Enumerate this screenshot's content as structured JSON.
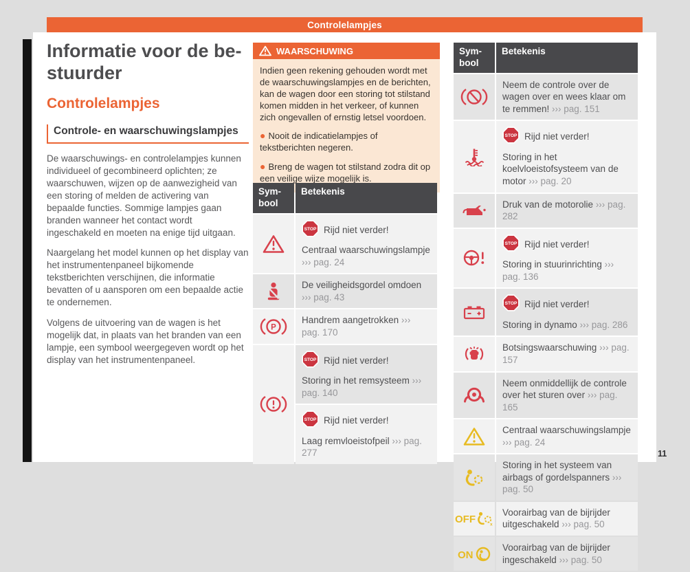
{
  "colors": {
    "accent": "#eb6434",
    "canvas_bg": "#dedede",
    "page_bg": "#ffffff",
    "table_header_bg": "#48484b",
    "row_light": "#f2f2f2",
    "row_dark": "#e4e4e4",
    "warning_body_bg": "#fbe7d4",
    "icon_red": "#d8414c",
    "icon_yellow": "#e7bb22",
    "stop_red": "#cb3540",
    "ref_gray": "#97979a"
  },
  "banner": {
    "text": "Controlelampjes"
  },
  "page_number": "11",
  "left_column": {
    "title_lines": [
      "Informatie voor de be-",
      "stuurder"
    ],
    "section_heading": "Controlelampjes",
    "subsection_heading": "Controle- en waarschuwingslampjes",
    "paragraphs": [
      "De waarschuwings- en controlelampjes kunnen individueel of gecombineerd oplichten; ze waarschuwen, wijzen op de aanwezigheid van een storing of melden de activering van bepaalde functies. Sommige lampjes gaan branden wanneer het contact wordt ingeschakeld en moeten na enige tijd uitgaan.",
      "Naargelang het model kunnen op het display van het instrumentenpaneel bijkomende tekstberichten verschijnen, die informatie bevatten of u aansporen om een bepaalde actie te ondernemen.",
      "Volgens de uitvoering van de wagen is het mogelijk dat, in plaats van het branden van een lampje, een symbool weergegeven wordt op het display van het instrumentenpaneel."
    ]
  },
  "warning_box": {
    "title": "WAARSCHUWING",
    "body": "Indien geen rekening gehouden wordt met de waarschuwingslampjes en de berichten, kan de wagen door een storing tot stilstand komen midden in het verkeer, of kunnen zich ongevallen of ernstig letsel voordoen.",
    "bullets": [
      "Nooit de indicatielampjes of tekstberichten negeren.",
      "Breng de wagen tot stilstand zodra dit op een veilige wijze mogelijk is."
    ]
  },
  "tables": [
    {
      "id": "mid-table",
      "headers": [
        "Sym-bool",
        "Betekenis"
      ],
      "rows": [
        {
          "icon": "central-warning-red",
          "shade": "light",
          "entries": [
            {
              "shade": "light",
              "stop": true,
              "stop_label": "Rijd niet verder!",
              "text": "Centraal waarschuwingslampje",
              "ref": "››› pag. 24"
            }
          ]
        },
        {
          "icon": "seatbelt",
          "shade": "dark",
          "entries": [
            {
              "shade": "dark",
              "stop": false,
              "text": "De veiligheidsgordel omdoen",
              "ref": "››› pag. 43"
            }
          ]
        },
        {
          "icon": "handbrake",
          "shade": "light",
          "entries": [
            {
              "shade": "light",
              "stop": false,
              "text": "Handrem aangetrokken",
              "ref": "››› pag. 170"
            }
          ]
        },
        {
          "icon": "brake-warning",
          "shade": "light",
          "entries": [
            {
              "shade": "dark",
              "stop": true,
              "stop_label": "Rijd niet verder!",
              "text": "Storing in het remsysteem",
              "ref": "››› pag. 140"
            },
            {
              "shade": "light",
              "stop": true,
              "stop_label": "Rijd niet verder!",
              "text": "Laag remvloeistofpeil",
              "ref": "››› pag. 277"
            }
          ]
        }
      ]
    },
    {
      "id": "right-table",
      "headers": [
        "Sym-bool",
        "Betekenis"
      ],
      "rows": [
        {
          "icon": "brake-assist",
          "shade": "dark",
          "entries": [
            {
              "shade": "dark",
              "stop": false,
              "text": "Neem de controle over de wagen over en wees klaar om te remmen!",
              "ref": "››› pag. 151"
            }
          ]
        },
        {
          "icon": "coolant",
          "shade": "light",
          "entries": [
            {
              "shade": "light",
              "stop": true,
              "stop_label": "Rijd niet verder!",
              "text": "Storing in het koelvloeistofsysteem van de motor",
              "ref": "››› pag. 20"
            }
          ]
        },
        {
          "icon": "oil-pressure",
          "shade": "dark",
          "entries": [
            {
              "shade": "dark",
              "stop": false,
              "text": "Druk van de motorolie",
              "ref": "››› pag. 282"
            }
          ]
        },
        {
          "icon": "steering-warning",
          "shade": "light",
          "entries": [
            {
              "shade": "light",
              "stop": true,
              "stop_label": "Rijd niet verder!",
              "text": "Storing in stuurinrichting",
              "ref": "››› pag. 136"
            }
          ]
        },
        {
          "icon": "battery",
          "shade": "dark",
          "entries": [
            {
              "shade": "dark",
              "stop": true,
              "stop_label": "Rijd niet verder!",
              "text": "Storing in dynamo",
              "ref": "››› pag. 286"
            }
          ]
        },
        {
          "icon": "collision-warning",
          "shade": "light",
          "entries": [
            {
              "shade": "light",
              "stop": false,
              "text": "Botsingswaarschuwing",
              "ref": "››› pag. 157"
            }
          ]
        },
        {
          "icon": "hands-on-wheel",
          "shade": "dark",
          "entries": [
            {
              "shade": "dark",
              "stop": false,
              "text": "Neem onmiddellijk de controle over het sturen over",
              "ref": "››› pag. 165"
            }
          ]
        },
        {
          "icon": "central-warning-yellow",
          "shade": "light",
          "entries": [
            {
              "shade": "light",
              "stop": false,
              "text": "Centraal waarschuwingslampje",
              "ref": "››› pag. 24"
            }
          ]
        },
        {
          "icon": "airbag-warning",
          "shade": "dark",
          "entries": [
            {
              "shade": "dark",
              "stop": false,
              "text": "Storing in het systeem van airbags of gordelspanners",
              "ref": "››› pag. 50"
            }
          ]
        },
        {
          "icon": "airbag-off",
          "shade": "light",
          "entries": [
            {
              "shade": "light",
              "stop": false,
              "text": "Voorairbag van de bijrijder uitgeschakeld",
              "ref": "››› pag. 50"
            }
          ]
        },
        {
          "icon": "airbag-on",
          "shade": "dark",
          "entries": [
            {
              "shade": "dark",
              "stop": false,
              "text": "Voorairbag van de bijrijder ingeschakeld",
              "ref": "››› pag. 50"
            }
          ]
        }
      ]
    }
  ]
}
